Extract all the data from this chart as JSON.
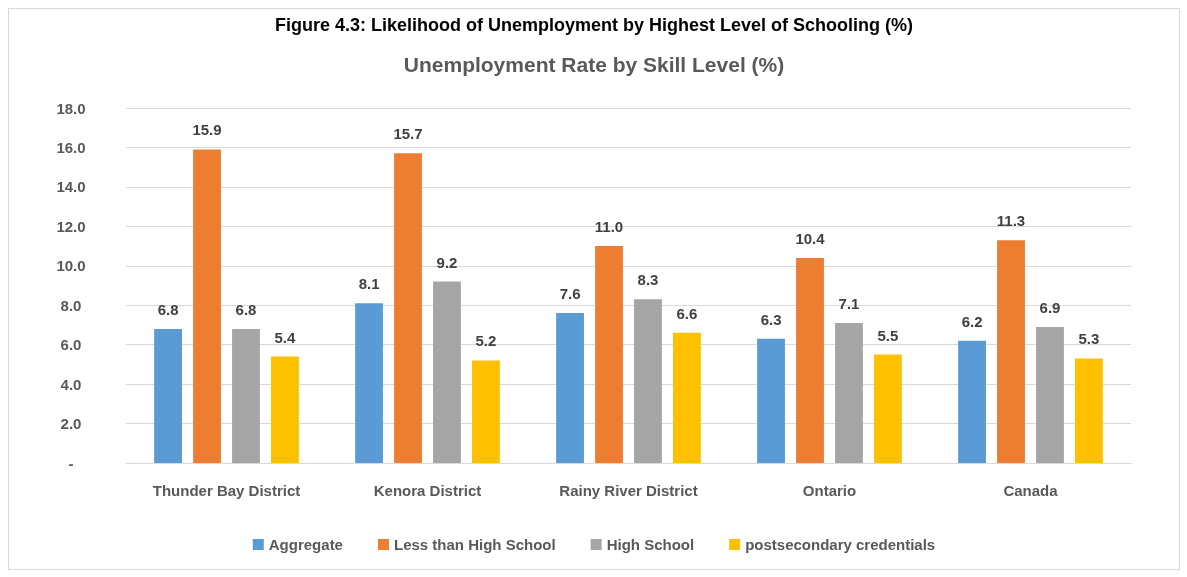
{
  "chart_data": {
    "type": "bar",
    "title": "Figure 4.3: Likelihood of Unemployment by Highest Level of Schooling (%)",
    "subtitle": "Unemployment Rate by Skill Level (%)",
    "categories": [
      "Thunder Bay District",
      "Kenora District",
      "Rainy River District",
      "Ontario",
      "Canada"
    ],
    "series": [
      {
        "name": "Aggregate",
        "color": "#5b9bd5",
        "values": [
          6.8,
          8.1,
          7.6,
          6.3,
          6.2
        ],
        "value_labels": [
          "6.8",
          "8.1",
          "7.6",
          "6.3",
          "6.2"
        ]
      },
      {
        "name": "Less than High School",
        "color": "#ed7d31",
        "values": [
          15.9,
          15.7,
          11.0,
          10.4,
          11.3
        ],
        "value_labels": [
          "15.9",
          "15.7",
          "11.0",
          "10.4",
          "11.3"
        ]
      },
      {
        "name": "High School",
        "color": "#a5a5a5",
        "values": [
          6.8,
          9.2,
          8.3,
          7.1,
          6.9
        ],
        "value_labels": [
          "6.8",
          "9.2",
          "8.3",
          "7.1",
          "6.9"
        ]
      },
      {
        "name": "postsecondary credentials",
        "color": "#ffc000",
        "values": [
          5.4,
          5.2,
          6.6,
          5.5,
          5.3
        ],
        "value_labels": [
          "5.4",
          "5.2",
          "6.6",
          "5.5",
          "5.3"
        ]
      }
    ],
    "ylim": [
      0,
      18
    ],
    "yticks": [
      {
        "value": 0,
        "label": "-"
      },
      {
        "value": 2,
        "label": "2.0"
      },
      {
        "value": 4,
        "label": "4.0"
      },
      {
        "value": 6,
        "label": "6.0"
      },
      {
        "value": 8,
        "label": "8.0"
      },
      {
        "value": 10,
        "label": "10.0"
      },
      {
        "value": 12,
        "label": "12.0"
      },
      {
        "value": 14,
        "label": "14.0"
      },
      {
        "value": 16,
        "label": "16.0"
      },
      {
        "value": 18,
        "label": "18.0"
      }
    ],
    "grid": "y",
    "legend": "bottom"
  }
}
